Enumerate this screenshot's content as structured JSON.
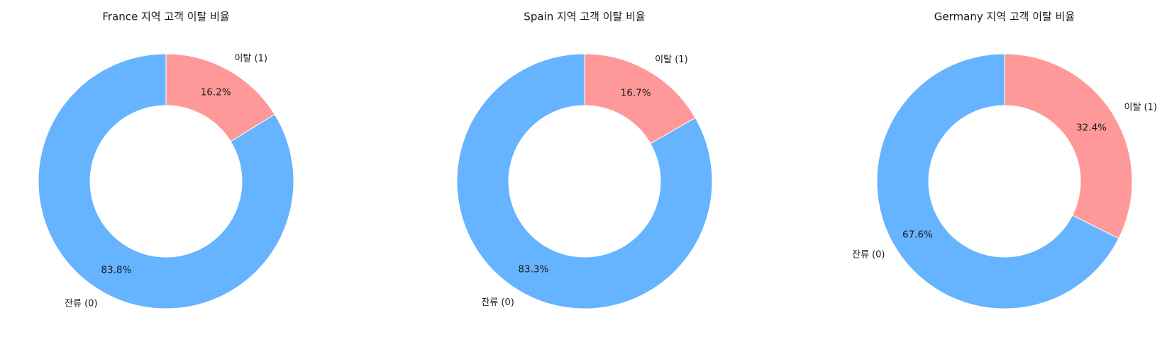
{
  "chart_data": [
    {
      "type": "pie",
      "donut": true,
      "title": "France 지역 고객 이탈 비율",
      "categories": [
        "잔류 (0)",
        "이탈 (1)"
      ],
      "values": [
        83.8,
        16.2
      ],
      "percent_labels": [
        "83.8%",
        "16.2%"
      ],
      "colors": [
        "#66b3ff",
        "#ff9999"
      ],
      "start_angle": "90 degrees (top)",
      "direction": "counter-clockwise"
    },
    {
      "type": "pie",
      "donut": true,
      "title": "Spain 지역 고객 이탈 비율",
      "categories": [
        "잔류 (0)",
        "이탈 (1)"
      ],
      "values": [
        83.3,
        16.7
      ],
      "percent_labels": [
        "83.3%",
        "16.7%"
      ],
      "colors": [
        "#66b3ff",
        "#ff9999"
      ],
      "start_angle": "90 degrees (top)",
      "direction": "counter-clockwise"
    },
    {
      "type": "pie",
      "donut": true,
      "title": "Germany 지역 고객 이탈 비율",
      "categories": [
        "잔류 (0)",
        "이탈 (1)"
      ],
      "values": [
        67.6,
        32.4
      ],
      "percent_labels": [
        "67.6%",
        "32.4%"
      ],
      "colors": [
        "#66b3ff",
        "#ff9999"
      ],
      "start_angle": "90 degrees (top)",
      "direction": "counter-clockwise"
    }
  ]
}
